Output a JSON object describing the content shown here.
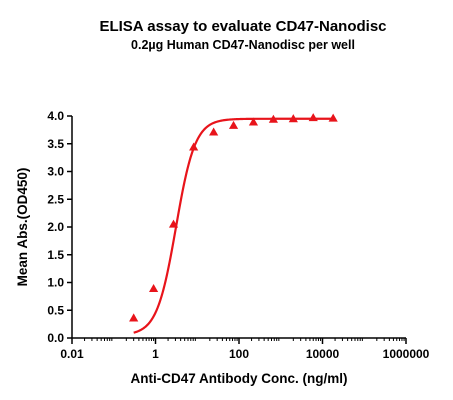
{
  "chart_data": {
    "type": "scatter",
    "title": "ELISA assay to evaluate CD47-Nanodisc",
    "subtitle": "0.2µg Human CD47-Nanodisc per well",
    "xlabel": "Anti-CD47 Antibody Conc. (ng/ml)",
    "ylabel": "Mean Abs.(OD450)",
    "x_scale": "log",
    "xlim": [
      0.01,
      1000000
    ],
    "ylim": [
      0,
      4.0
    ],
    "x_ticks": [
      0.01,
      1,
      100,
      10000,
      1000000
    ],
    "x_tick_labels": [
      "0.01",
      "1",
      "100",
      "10000",
      "1000000"
    ],
    "y_ticks": [
      0,
      0.5,
      1.0,
      1.5,
      2.0,
      2.5,
      3.0,
      3.5,
      4.0
    ],
    "y_tick_labels": [
      "0.0",
      "0.5",
      "1.0",
      "1.5",
      "2.0",
      "2.5",
      "3.0",
      "3.5",
      "4.0"
    ],
    "grid": false,
    "marker": "triangle",
    "color": "#e8141b",
    "series": [
      {
        "x": [
          0.3,
          0.9,
          2.7,
          8.2,
          24.7,
          74,
          222,
          667,
          2000,
          6000,
          18000
        ],
        "y": [
          0.36,
          0.89,
          2.05,
          3.44,
          3.71,
          3.83,
          3.89,
          3.94,
          3.95,
          3.97,
          3.96
        ]
      }
    ],
    "fit": {
      "model": "4PL",
      "bottom": 0.05,
      "top": 3.95,
      "ec50": 3.1,
      "hill": 1.9,
      "x_range": [
        0.3,
        18000
      ]
    }
  }
}
